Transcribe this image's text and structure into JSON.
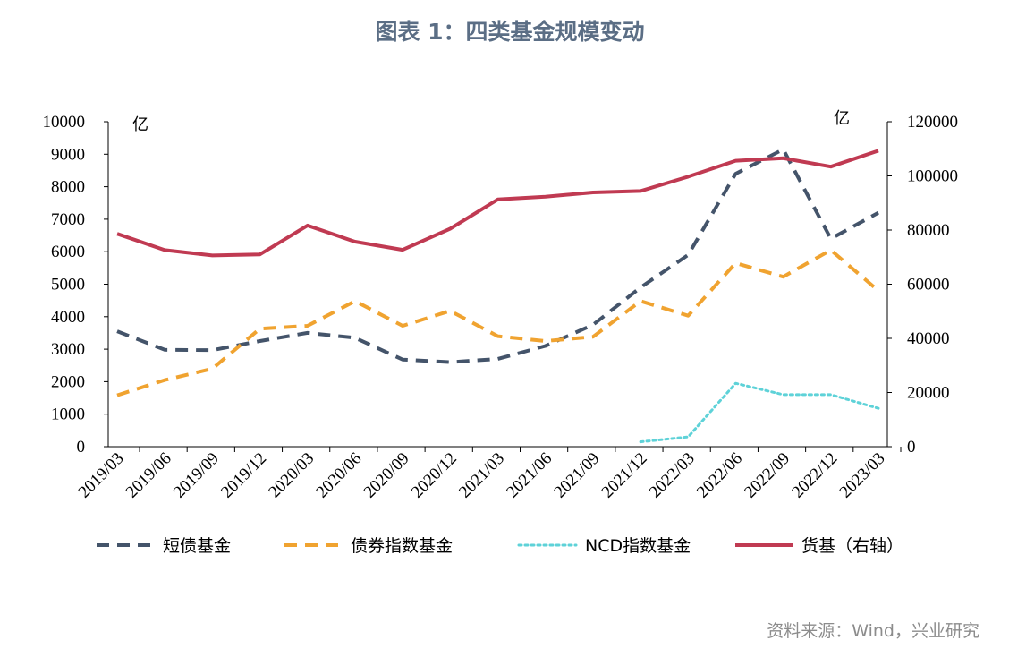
{
  "chart_data": {
    "type": "line",
    "title": "图表 1：四类基金规模变动",
    "source": "资料来源：Wind，兴业研究",
    "left_unit": "亿",
    "right_unit": "亿",
    "ylim": [
      0,
      10000
    ],
    "y2lim": [
      0,
      120000
    ],
    "yticks": [
      "0",
      "1000",
      "2000",
      "3000",
      "4000",
      "5000",
      "6000",
      "7000",
      "8000",
      "9000",
      "10000"
    ],
    "y2ticks": [
      "0",
      "20000",
      "40000",
      "60000",
      "80000",
      "100000",
      "120000"
    ],
    "categories": [
      "2019/03",
      "2019/06",
      "2019/09",
      "2019/12",
      "2020/03",
      "2020/06",
      "2020/09",
      "2020/12",
      "2021/03",
      "2021/06",
      "2021/09",
      "2021/12",
      "2022/03",
      "2022/06",
      "2022/09",
      "2022/12",
      "2023/03"
    ],
    "grid": false,
    "legend_position": "bottom",
    "series": [
      {
        "name": "短债基金",
        "axis": "left",
        "style": "dashed",
        "color": "#44546a",
        "values": [
          3550,
          2980,
          2970,
          3250,
          3500,
          3350,
          2680,
          2600,
          2700,
          3100,
          3750,
          4900,
          5900,
          8400,
          9150,
          6400,
          7200
        ]
      },
      {
        "name": "债券指数基金",
        "axis": "left",
        "style": "dashed",
        "color": "#f0a330",
        "values": [
          1580,
          2050,
          2400,
          3630,
          3720,
          4480,
          3720,
          4180,
          3400,
          3250,
          3380,
          4480,
          4030,
          5650,
          5230,
          6050,
          4800
        ]
      },
      {
        "name": "NCD指数基金",
        "axis": "left",
        "style": "dotted",
        "color": "#5ed2d8",
        "values": [
          null,
          null,
          null,
          null,
          null,
          null,
          null,
          null,
          null,
          null,
          null,
          150,
          300,
          1950,
          1600,
          1600,
          1180
        ]
      },
      {
        "name": "货基（右轴）",
        "axis": "right",
        "style": "solid",
        "color": "#c03a52",
        "values": [
          78600,
          72600,
          70600,
          71000,
          81700,
          75700,
          72700,
          80500,
          91300,
          92300,
          93900,
          94400,
          99700,
          105600,
          106500,
          103400,
          109300
        ]
      }
    ]
  }
}
